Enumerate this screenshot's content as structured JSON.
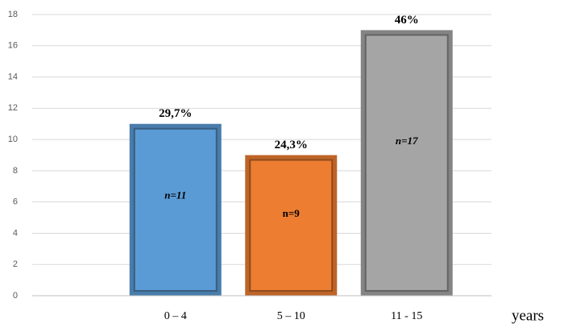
{
  "chart_data": {
    "type": "bar",
    "categories": [
      "0 – 4",
      "5 – 10",
      "11 - 15"
    ],
    "values": [
      11,
      9,
      17
    ],
    "value_labels": [
      "n=11",
      "n=9",
      "n=17"
    ],
    "percent_labels": [
      "29,7%",
      "24,3%",
      "46%"
    ],
    "colors": [
      "#5b9bd5",
      "#ed7d31",
      "#a5a5a5"
    ],
    "x_label": "years",
    "ylim": [
      0,
      18
    ],
    "yticks": [
      0,
      2,
      4,
      6,
      8,
      10,
      12,
      14,
      16,
      18
    ],
    "grid": true
  }
}
